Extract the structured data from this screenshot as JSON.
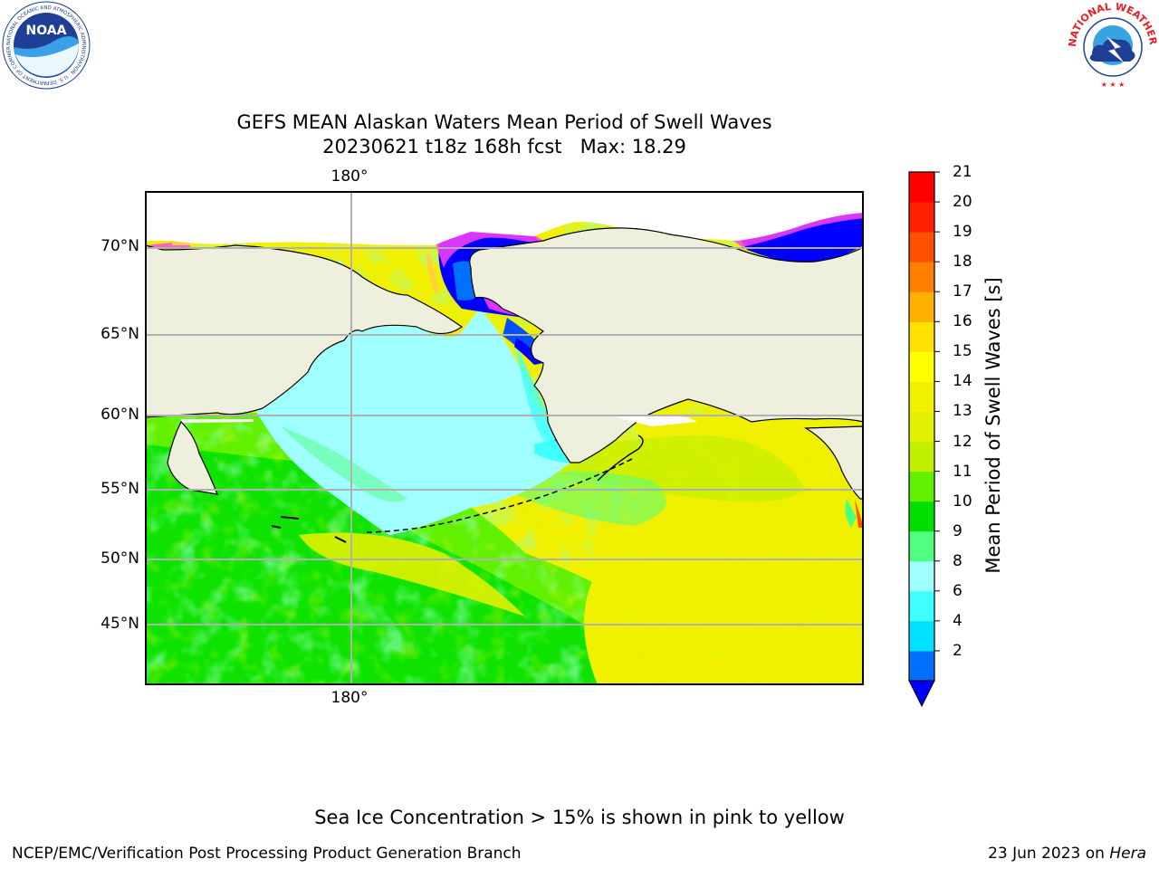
{
  "logos": {
    "noaa": {
      "wordmark": "NOAA",
      "ring_text": "NATIONAL OCEANIC AND ATMOSPHERIC ADMINISTRATION · U.S. DEPARTMENT OF COMMERCE"
    },
    "nws": {
      "ring_text": "NATIONAL WEATHER SERVICE"
    }
  },
  "title": {
    "line1": "GEFS MEAN Alaskan Waters Mean Period of Swell Waves",
    "line2": "20230621 t18z 168h fcst   Max: 18.29"
  },
  "map": {
    "lat_labels": [
      "70°N",
      "65°N",
      "60°N",
      "55°N",
      "50°N",
      "45°N"
    ],
    "lon_label_top": "180°",
    "lon_label_bottom": "180°",
    "colors": {
      "land": "#efefde",
      "frame": "#000000",
      "grid": "#b0b0b0"
    }
  },
  "colorbar": {
    "label": "Mean Period of Swell Waves [s]",
    "ticks": [
      "21",
      "20",
      "19",
      "18",
      "17",
      "16",
      "15",
      "14",
      "13",
      "12",
      "11",
      "10",
      "9",
      "8",
      "6",
      "4",
      "2"
    ],
    "colors_bottom_to_top": [
      "#0070ff",
      "#00e0ff",
      "#40ffff",
      "#a0ffff",
      "#50ff80",
      "#00e000",
      "#60f000",
      "#c0f000",
      "#e0f000",
      "#f0f000",
      "#ffff00",
      "#ffe000",
      "#ffb000",
      "#ff8000",
      "#ff5000",
      "#ff2000",
      "#ff0000"
    ],
    "extend_color": "#0000ff"
  },
  "footnote": "Sea Ice Concentration > 15% is shown in pink to yellow",
  "footer": {
    "left": "NCEP/EMC/Verification Post Processing Product Generation Branch",
    "right_date": "23 Jun 2023 on ",
    "right_host": "Hera"
  }
}
